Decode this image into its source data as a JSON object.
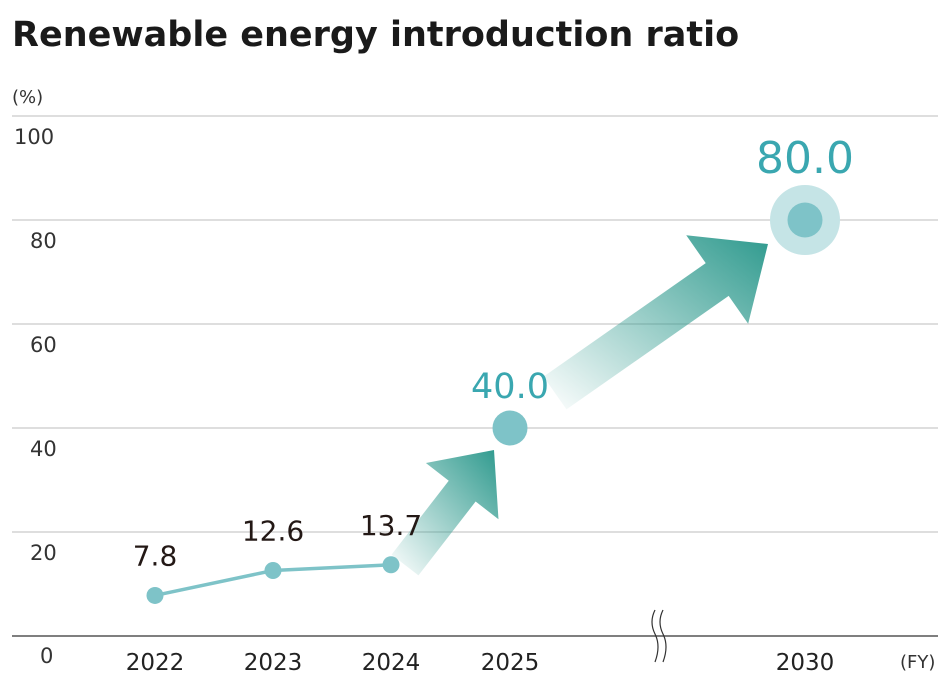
{
  "chart_data": {
    "type": "line",
    "title": "Renewable energy introduction ratio",
    "ylabel": "(%)",
    "xlabel": "(FY)",
    "ylim": [
      0,
      100
    ],
    "yticks": [
      "0",
      "20",
      "40",
      "60",
      "80",
      "100"
    ],
    "grid": true,
    "axis_break": "between 2025 and 2030",
    "categories": [
      "2022",
      "2023",
      "2024",
      "2025",
      "2030"
    ],
    "series": [
      {
        "values": [
          7.8,
          12.6,
          13.7,
          null,
          null
        ],
        "labels": [
          "7.8",
          "12.6",
          "13.7",
          "",
          ""
        ],
        "kind": "actual"
      },
      {
        "values": [
          null,
          null,
          null,
          40.0,
          80.0
        ],
        "labels": [
          "",
          "",
          "",
          "40.0",
          "80.0"
        ],
        "kind": "target"
      }
    ],
    "colors": {
      "line": "#7ec3c8",
      "target_label": "#3aa7b0",
      "arrow": "#2f9a8e",
      "halo": "#c5e4e6",
      "grid": "#bdbdbd"
    }
  }
}
